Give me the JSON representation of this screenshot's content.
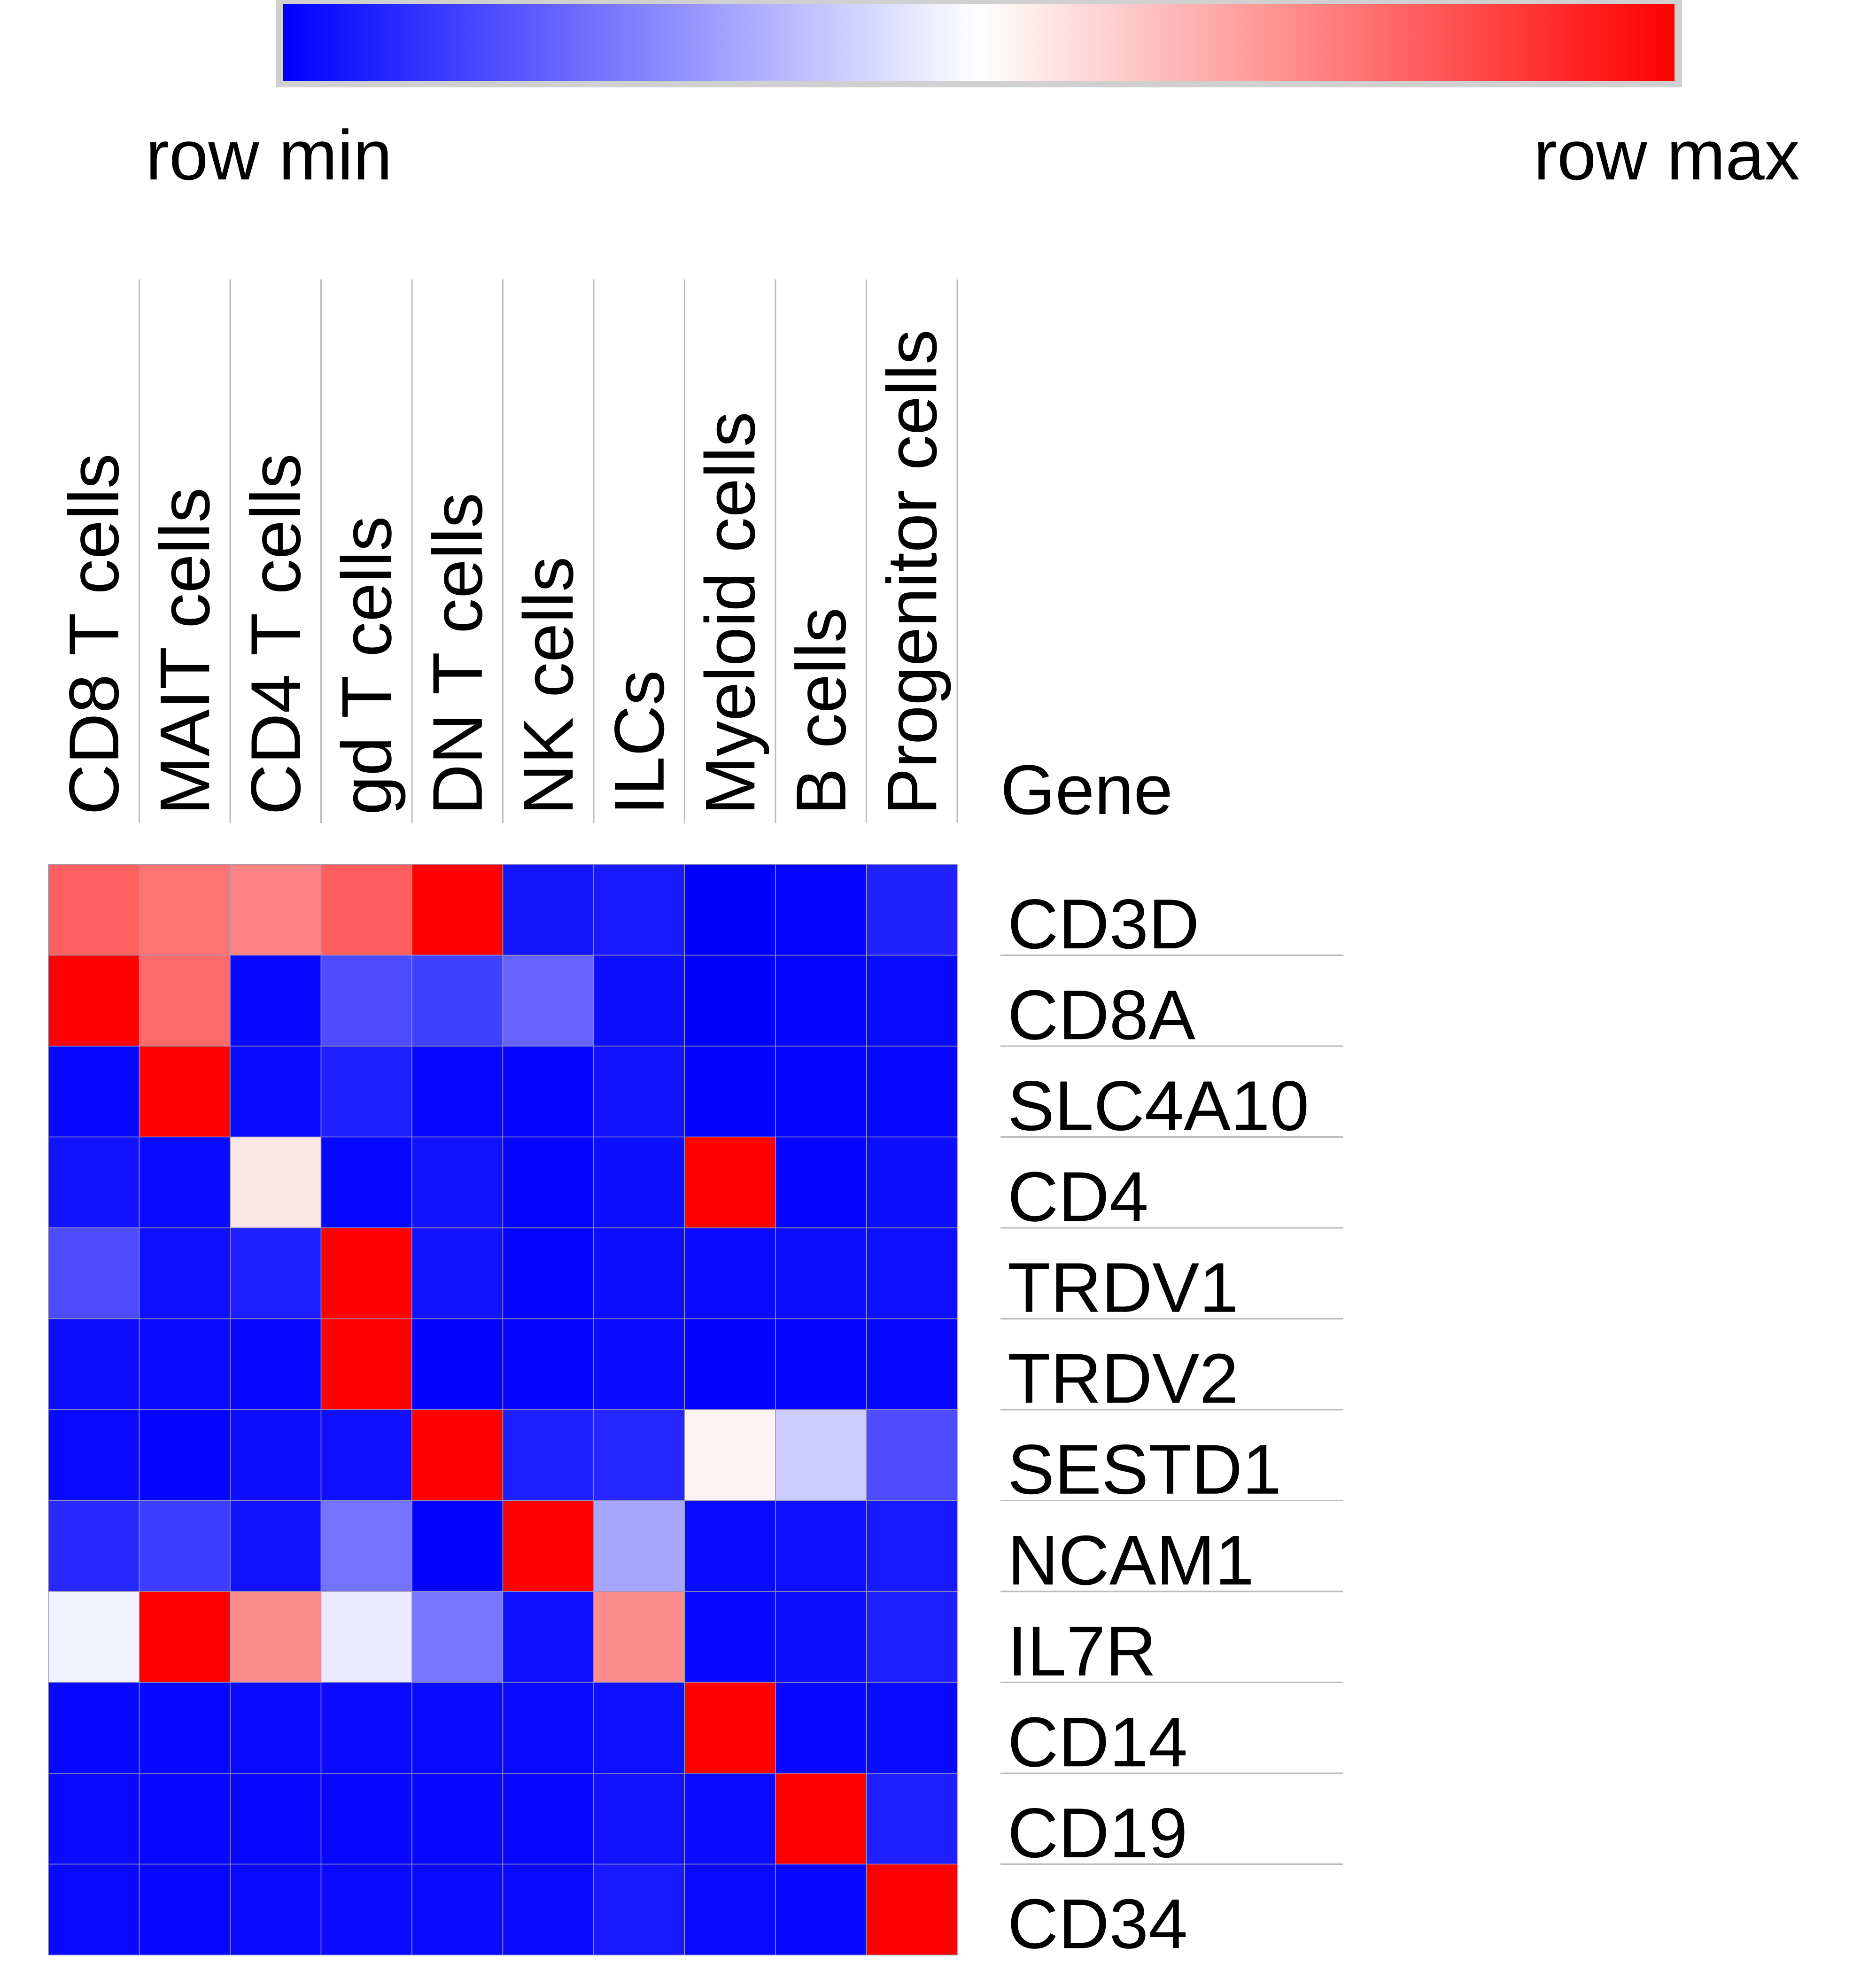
{
  "chart_data": {
    "type": "heatmap",
    "legend": {
      "min_label": "row min",
      "max_label": "row max",
      "colors": [
        "#0000ff",
        "#ffffff",
        "#ff0000"
      ]
    },
    "row_header": "Gene",
    "columns": [
      "CD8 T cells",
      "MAIT cells",
      "CD4 T cells",
      "gd T cells",
      "DN T cells",
      "NK cells",
      "ILCs",
      "Myeloid cells",
      "B cells",
      "Progenitor cells"
    ],
    "rows": [
      "CD3D",
      "CD8A",
      "SLC4A10",
      "CD4",
      "TRDV1",
      "TRDV2",
      "SESTD1",
      "NCAM1",
      "IL7R",
      "CD14",
      "CD19",
      "CD34"
    ],
    "scale": "row-normalized, -1 = row min, 1 = row max",
    "values": [
      [
        0.62,
        0.55,
        0.48,
        0.63,
        1.0,
        -0.92,
        -0.9,
        -1.0,
        -0.98,
        -0.87
      ],
      [
        1.0,
        0.58,
        -0.97,
        -0.7,
        -0.75,
        -0.6,
        -0.95,
        -1.0,
        -0.98,
        -0.96
      ],
      [
        -0.97,
        1.0,
        -0.96,
        -0.88,
        -0.97,
        -0.98,
        -0.93,
        -0.99,
        -0.98,
        -0.97
      ],
      [
        -0.93,
        -0.96,
        0.1,
        -0.97,
        -0.93,
        -0.98,
        -0.95,
        1.0,
        -0.98,
        -0.95
      ],
      [
        -0.7,
        -0.94,
        -0.88,
        1.0,
        -0.93,
        -0.98,
        -0.95,
        -0.96,
        -0.95,
        -0.94
      ],
      [
        -0.95,
        -0.96,
        -0.97,
        1.0,
        -0.99,
        -0.98,
        -0.96,
        -0.99,
        -0.98,
        -0.97
      ],
      [
        -0.96,
        -0.98,
        -0.95,
        -0.94,
        1.0,
        -0.88,
        -0.85,
        0.05,
        -0.2,
        -0.7
      ],
      [
        -0.84,
        -0.76,
        -0.93,
        -0.55,
        -0.99,
        1.0,
        -0.35,
        -0.96,
        -0.94,
        -0.9
      ],
      [
        -0.05,
        1.0,
        0.45,
        -0.08,
        -0.53,
        -0.94,
        0.45,
        -0.97,
        -0.95,
        -0.88
      ],
      [
        -0.97,
        -0.97,
        -0.96,
        -0.96,
        -0.96,
        -0.96,
        -0.94,
        1.0,
        -0.97,
        -0.96
      ],
      [
        -0.96,
        -0.97,
        -0.97,
        -0.97,
        -0.97,
        -0.97,
        -0.93,
        -0.96,
        1.0,
        -0.88
      ],
      [
        -0.96,
        -0.97,
        -0.96,
        -0.96,
        -0.96,
        -0.96,
        -0.9,
        -0.96,
        -0.97,
        1.0
      ]
    ]
  }
}
